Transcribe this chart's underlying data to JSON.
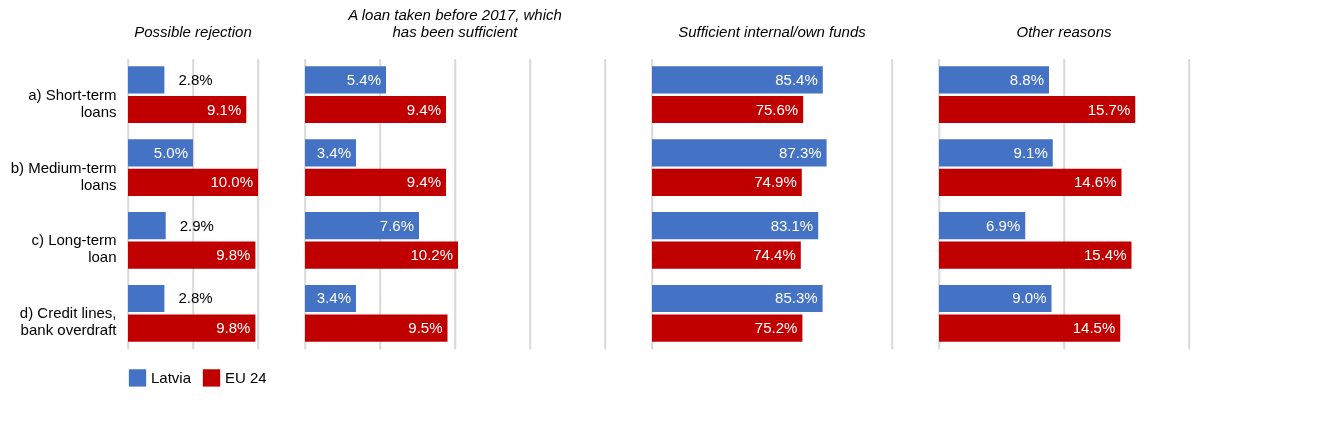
{
  "chart_data": [
    {
      "type": "bar",
      "orientation": "horizontal",
      "title": "Possible rejection",
      "categories": [
        "a) Short-term loans",
        "b) Medium-term loans",
        "c) Long-term loan",
        "d) Credit lines, bank overdraft"
      ],
      "series": [
        {
          "name": "Latvia",
          "color": "#4472c4",
          "values": [
            2.8,
            5.0,
            2.9,
            2.8
          ],
          "value_labels": [
            "2.8%",
            "5.0%",
            "2.9%",
            "2.8%"
          ]
        },
        {
          "name": "EU 24",
          "color": "#c00000",
          "values": [
            9.1,
            10.0,
            9.8,
            9.8
          ],
          "value_labels": [
            "9.1%",
            "10.0%",
            "9.8%",
            "9.8%"
          ]
        }
      ],
      "xlim": [
        0,
        10
      ],
      "xticks": [
        {
          "value": 0,
          "label": null
        },
        {
          "value": 5,
          "label": null
        },
        {
          "value": 10,
          "label": null
        }
      ],
      "grid": "x",
      "tick_labels": "y",
      "legend": "bottom"
    },
    {
      "type": "bar",
      "orientation": "horizontal",
      "title": "A loan taken before 2017, which has been sufficient",
      "categories": [
        "a) Short-term loans",
        "b) Medium-term loans",
        "c) Long-term loan",
        "d) Credit lines, bank overdraft"
      ],
      "series": [
        {
          "name": "Latvia",
          "color": "#4472c4",
          "values": [
            5.4,
            3.4,
            7.6,
            3.4
          ],
          "value_labels": [
            "5.4%",
            "3.4%",
            "7.6%",
            "3.4%"
          ]
        },
        {
          "name": "EU 24",
          "color": "#c00000",
          "values": [
            9.4,
            9.4,
            10.2,
            9.5
          ],
          "value_labels": [
            "9.4%",
            "9.4%",
            "10.2%",
            "9.5%"
          ]
        }
      ],
      "xlim": [
        0,
        20
      ],
      "xticks": [
        {
          "value": 0,
          "label": null
        },
        {
          "value": 5,
          "label": null
        },
        {
          "value": 10,
          "label": null
        },
        {
          "value": 15,
          "label": null
        },
        {
          "value": 20,
          "label": null
        }
      ],
      "grid": "x",
      "tick_labels": false
    },
    {
      "type": "bar",
      "orientation": "horizontal",
      "title": "Sufficient internal/own funds",
      "categories": [
        "a) Short-term loans",
        "b) Medium-term loans",
        "c) Long-term loan",
        "d) Credit lines, bank overdraft"
      ],
      "series": [
        {
          "name": "Latvia",
          "color": "#4472c4",
          "values": [
            85.4,
            87.3,
            83.1,
            85.3
          ],
          "value_labels": [
            "85.4%",
            "87.3%",
            "83.1%",
            "85.3%"
          ]
        },
        {
          "name": "EU 24",
          "color": "#c00000",
          "values": [
            75.6,
            74.9,
            74.4,
            75.2
          ],
          "value_labels": [
            "75.6%",
            "74.9%",
            "74.4%",
            "75.2%"
          ]
        }
      ],
      "xlim": [
        0,
        120
      ],
      "xticks": [
        {
          "value": 0,
          "label": null
        },
        {
          "value": 120,
          "label": null
        }
      ],
      "grid": "x",
      "tick_labels": false
    },
    {
      "type": "bar",
      "orientation": "horizontal",
      "title": "Other reasons",
      "categories": [
        "a) Short-term loans",
        "b) Medium-term loans",
        "c) Long-term loan",
        "d) Credit lines, bank overdraft"
      ],
      "series": [
        {
          "name": "Latvia",
          "color": "#4472c4",
          "values": [
            8.8,
            9.1,
            6.9,
            9.0
          ],
          "value_labels": [
            "8.8%",
            "9.1%",
            "6.9%",
            "9.0%"
          ]
        },
        {
          "name": "EU 24",
          "color": "#c00000",
          "values": [
            15.7,
            14.6,
            15.4,
            14.5
          ],
          "value_labels": [
            "15.7%",
            "14.6%",
            "15.4%",
            "14.5%"
          ]
        }
      ],
      "xlim": [
        0,
        20
      ],
      "xticks": [
        {
          "value": 0,
          "label": null
        },
        {
          "value": 10,
          "label": null
        },
        {
          "value": 20,
          "label": null
        }
      ],
      "grid": "x",
      "tick_labels": false
    }
  ]
}
